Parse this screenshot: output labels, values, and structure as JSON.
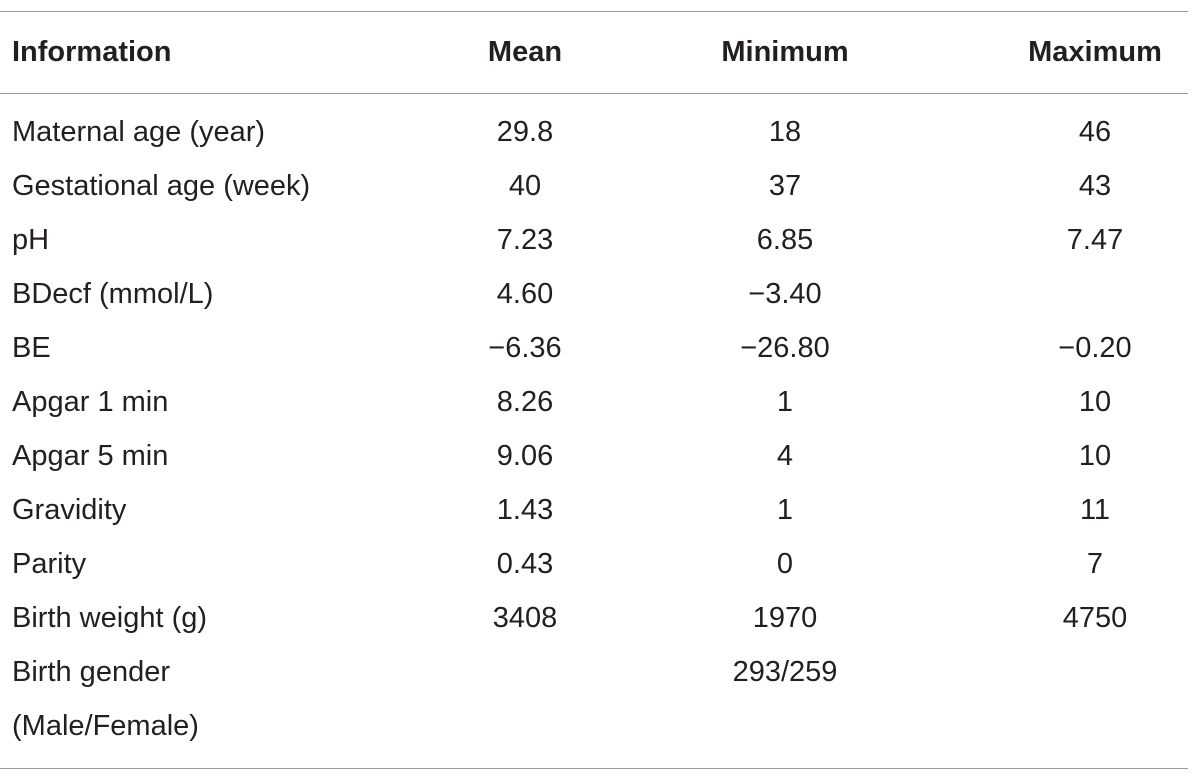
{
  "table": {
    "headers": [
      "Information",
      "Mean",
      "Minimum",
      "Maximum"
    ],
    "rows": [
      {
        "info": "Maternal age (year)",
        "mean": "29.8",
        "min": "18",
        "max": "46"
      },
      {
        "info": "Gestational age (week)",
        "mean": "40",
        "min": "37",
        "max": "43"
      },
      {
        "info": "pH",
        "mean": "7.23",
        "min": "6.85",
        "max": "7.47"
      },
      {
        "info": "BDecf (mmol/L)",
        "mean": "4.60",
        "min": "−3.40",
        "max": ""
      },
      {
        "info": "BE",
        "mean": "−6.36",
        "min": "−26.80",
        "max": "−0.20"
      },
      {
        "info": "Apgar 1 min",
        "mean": "8.26",
        "min": "1",
        "max": "10"
      },
      {
        "info": "Apgar 5 min",
        "mean": "9.06",
        "min": "4",
        "max": "10"
      },
      {
        "info": "Gravidity",
        "mean": "1.43",
        "min": "1",
        "max": "11"
      },
      {
        "info": "Parity",
        "mean": "0.43",
        "min": "0",
        "max": "7"
      },
      {
        "info": "Birth weight (g)",
        "mean": "3408",
        "min": "1970",
        "max": "4750"
      }
    ],
    "gender_row": {
      "info_line1": "Birth gender",
      "info_line2": "(Male/Female)",
      "value": "293/259"
    }
  }
}
